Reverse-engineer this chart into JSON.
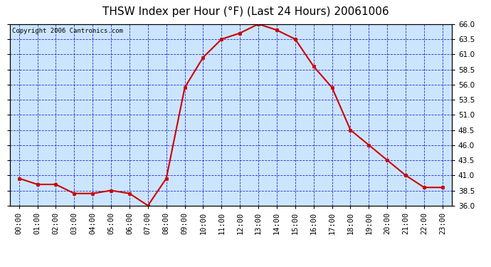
{
  "title": "THSW Index per Hour (°F) (Last 24 Hours) 20061006",
  "copyright": "Copyright 2006 Cantronics.com",
  "hours": [
    "00:00",
    "01:00",
    "02:00",
    "03:00",
    "04:00",
    "05:00",
    "06:00",
    "07:00",
    "08:00",
    "09:00",
    "10:00",
    "11:00",
    "12:00",
    "13:00",
    "14:00",
    "15:00",
    "16:00",
    "17:00",
    "18:00",
    "19:00",
    "20:00",
    "21:00",
    "22:00",
    "23:00"
  ],
  "values": [
    40.5,
    39.5,
    39.5,
    38.0,
    38.0,
    38.5,
    38.0,
    36.0,
    40.5,
    55.5,
    60.5,
    63.5,
    64.5,
    66.0,
    65.0,
    63.5,
    59.0,
    55.5,
    48.5,
    46.0,
    43.5,
    41.0,
    39.0,
    39.0
  ],
  "ylim_min": 36.0,
  "ylim_max": 66.0,
  "yticks": [
    36.0,
    38.5,
    41.0,
    43.5,
    46.0,
    48.5,
    51.0,
    53.5,
    56.0,
    58.5,
    61.0,
    63.5,
    66.0
  ],
  "line_color": "#cc0000",
  "marker_color": "#cc0000",
  "plot_bg_color": "#cce5ff",
  "outer_bg_color": "#ffffff",
  "grid_color": "#0000bb",
  "title_color": "#000000",
  "axis_color": "#000000",
  "tick_label_color": "#000000",
  "copyright_color": "#000000",
  "title_fontsize": 11,
  "tick_fontsize": 7.5,
  "copyright_fontsize": 6.5
}
